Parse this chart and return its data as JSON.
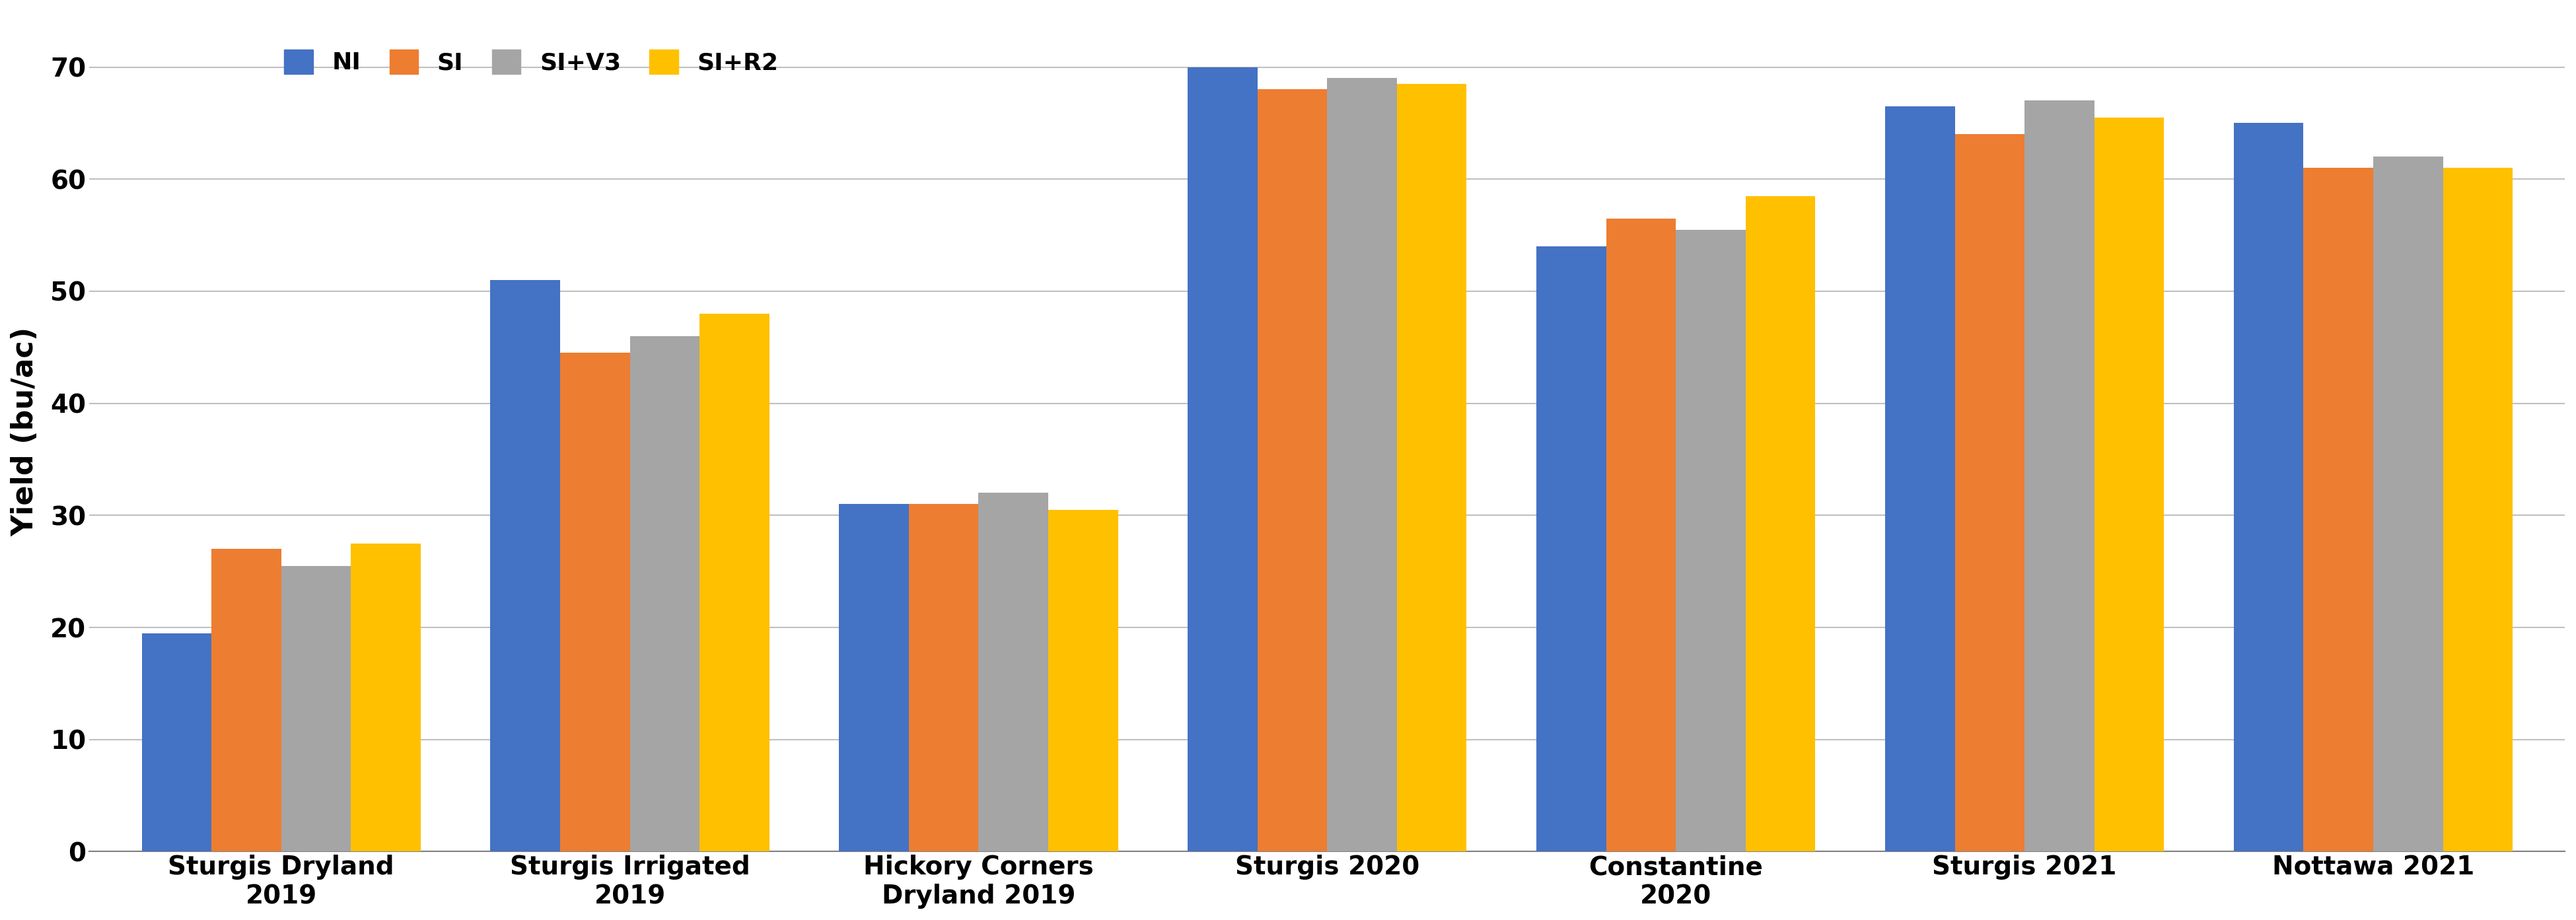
{
  "categories": [
    "Sturgis Dryland\n2019",
    "Sturgis Irrigated\n2019",
    "Hickory Corners\nDryland 2019",
    "Sturgis 2020",
    "Constantine\n2020",
    "Sturgis 2021",
    "Nottawa 2021"
  ],
  "series": {
    "NI": [
      19.5,
      51.0,
      31.0,
      70.0,
      54.0,
      66.5,
      65.0
    ],
    "SI": [
      27.0,
      44.5,
      31.0,
      68.0,
      56.5,
      64.0,
      61.0
    ],
    "SI+V3": [
      25.5,
      46.0,
      32.0,
      69.0,
      55.5,
      67.0,
      62.0
    ],
    "SI+R2": [
      27.5,
      48.0,
      30.5,
      68.5,
      58.5,
      65.5,
      61.0
    ]
  },
  "colors": {
    "NI": "#4472C4",
    "SI": "#ED7D31",
    "SI+V3": "#A5A5A5",
    "SI+R2": "#FFC000"
  },
  "ylabel": "Yield (bu/ac)",
  "ylim": [
    0,
    75
  ],
  "yticks": [
    0,
    10,
    20,
    30,
    40,
    50,
    60,
    70
  ],
  "legend_labels": [
    "NI",
    "SI",
    "SI+V3",
    "SI+R2"
  ],
  "bar_width": 0.2,
  "background_color": "#FFFFFF",
  "grid_color": "#C0C0C0",
  "fontsize_ticks": 28,
  "fontsize_ylabel": 32,
  "fontsize_legend": 26
}
